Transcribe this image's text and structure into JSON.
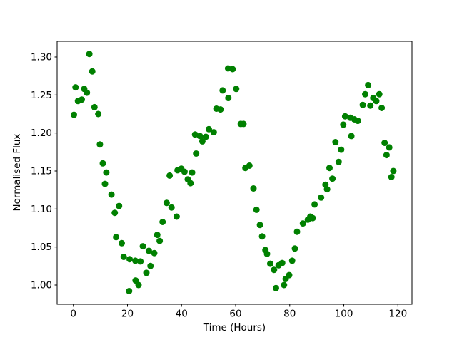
{
  "chart_data": {
    "type": "scatter",
    "title": "",
    "xlabel": "Time (Hours)",
    "ylabel": "Normalised Flux",
    "legend": null,
    "grid": false,
    "xlim": [
      -6.0,
      125.2
    ],
    "ylim": [
      0.9747,
      1.3206
    ],
    "xticks": [
      0,
      20,
      40,
      60,
      80,
      100,
      120
    ],
    "yticks": [
      1.0,
      1.05,
      1.1,
      1.15,
      1.2,
      1.25,
      1.3
    ],
    "marker": {
      "shape": "circle",
      "color": "#008000",
      "radius_px": 4.5
    },
    "points": [
      [
        0.2,
        1.224
      ],
      [
        0.8,
        1.26
      ],
      [
        1.7,
        1.242
      ],
      [
        3.1,
        1.244
      ],
      [
        4.0,
        1.258
      ],
      [
        5.0,
        1.253
      ],
      [
        5.9,
        1.304
      ],
      [
        7.0,
        1.281
      ],
      [
        7.8,
        1.234
      ],
      [
        9.2,
        1.225
      ],
      [
        9.8,
        1.185
      ],
      [
        10.9,
        1.16
      ],
      [
        12.2,
        1.148
      ],
      [
        11.7,
        1.133
      ],
      [
        14.1,
        1.119
      ],
      [
        15.3,
        1.095
      ],
      [
        16.9,
        1.104
      ],
      [
        15.8,
        1.063
      ],
      [
        17.9,
        1.055
      ],
      [
        18.6,
        1.037
      ],
      [
        20.8,
        1.034
      ],
      [
        22.9,
        1.032
      ],
      [
        24.8,
        1.031
      ],
      [
        20.6,
        0.992
      ],
      [
        23.0,
        1.006
      ],
      [
        24.1,
        1.0
      ],
      [
        27.0,
        1.016
      ],
      [
        25.7,
        1.051
      ],
      [
        27.9,
        1.045
      ],
      [
        28.5,
        1.025
      ],
      [
        29.9,
        1.042
      ],
      [
        31.0,
        1.066
      ],
      [
        31.9,
        1.058
      ],
      [
        33.0,
        1.083
      ],
      [
        34.5,
        1.108
      ],
      [
        36.3,
        1.102
      ],
      [
        38.2,
        1.09
      ],
      [
        35.6,
        1.144
      ],
      [
        38.5,
        1.151
      ],
      [
        39.9,
        1.153
      ],
      [
        41.1,
        1.149
      ],
      [
        42.3,
        1.139
      ],
      [
        43.3,
        1.134
      ],
      [
        43.9,
        1.148
      ],
      [
        45.4,
        1.173
      ],
      [
        45.0,
        1.198
      ],
      [
        46.8,
        1.196
      ],
      [
        47.7,
        1.189
      ],
      [
        49.0,
        1.195
      ],
      [
        50.1,
        1.205
      ],
      [
        51.9,
        1.201
      ],
      [
        52.9,
        1.232
      ],
      [
        54.4,
        1.231
      ],
      [
        55.2,
        1.256
      ],
      [
        57.3,
        1.246
      ],
      [
        57.2,
        1.285
      ],
      [
        58.9,
        1.284
      ],
      [
        60.2,
        1.258
      ],
      [
        61.9,
        1.212
      ],
      [
        62.9,
        1.212
      ],
      [
        63.6,
        1.154
      ],
      [
        65.1,
        1.157
      ],
      [
        66.6,
        1.127
      ],
      [
        67.7,
        1.099
      ],
      [
        69.0,
        1.079
      ],
      [
        69.8,
        1.064
      ],
      [
        71.0,
        1.046
      ],
      [
        71.6,
        1.041
      ],
      [
        72.8,
        1.028
      ],
      [
        74.2,
        1.02
      ],
      [
        74.9,
        0.996
      ],
      [
        75.9,
        1.026
      ],
      [
        77.2,
        1.029
      ],
      [
        77.9,
        1.0
      ],
      [
        78.5,
        1.008
      ],
      [
        79.8,
        1.013
      ],
      [
        80.9,
        1.032
      ],
      [
        81.9,
        1.048
      ],
      [
        82.7,
        1.07
      ],
      [
        84.9,
        1.081
      ],
      [
        86.7,
        1.086
      ],
      [
        88.5,
        1.088
      ],
      [
        87.6,
        1.09
      ],
      [
        89.2,
        1.106
      ],
      [
        91.6,
        1.115
      ],
      [
        93.2,
        1.132
      ],
      [
        93.8,
        1.126
      ],
      [
        94.7,
        1.154
      ],
      [
        95.8,
        1.14
      ],
      [
        96.9,
        1.188
      ],
      [
        98.1,
        1.162
      ],
      [
        99.0,
        1.178
      ],
      [
        99.8,
        1.211
      ],
      [
        100.5,
        1.222
      ],
      [
        102.8,
        1.196
      ],
      [
        102.4,
        1.22
      ],
      [
        103.9,
        1.218
      ],
      [
        105.2,
        1.216
      ],
      [
        107.0,
        1.237
      ],
      [
        107.9,
        1.251
      ],
      [
        109.0,
        1.263
      ],
      [
        109.8,
        1.236
      ],
      [
        110.9,
        1.246
      ],
      [
        112.0,
        1.242
      ],
      [
        113.1,
        1.251
      ],
      [
        114.0,
        1.233
      ],
      [
        115.1,
        1.187
      ],
      [
        115.8,
        1.171
      ],
      [
        116.8,
        1.181
      ],
      [
        117.6,
        1.142
      ],
      [
        118.3,
        1.15
      ]
    ],
    "axes_color": "#000000",
    "background_color": "#ffffff"
  }
}
